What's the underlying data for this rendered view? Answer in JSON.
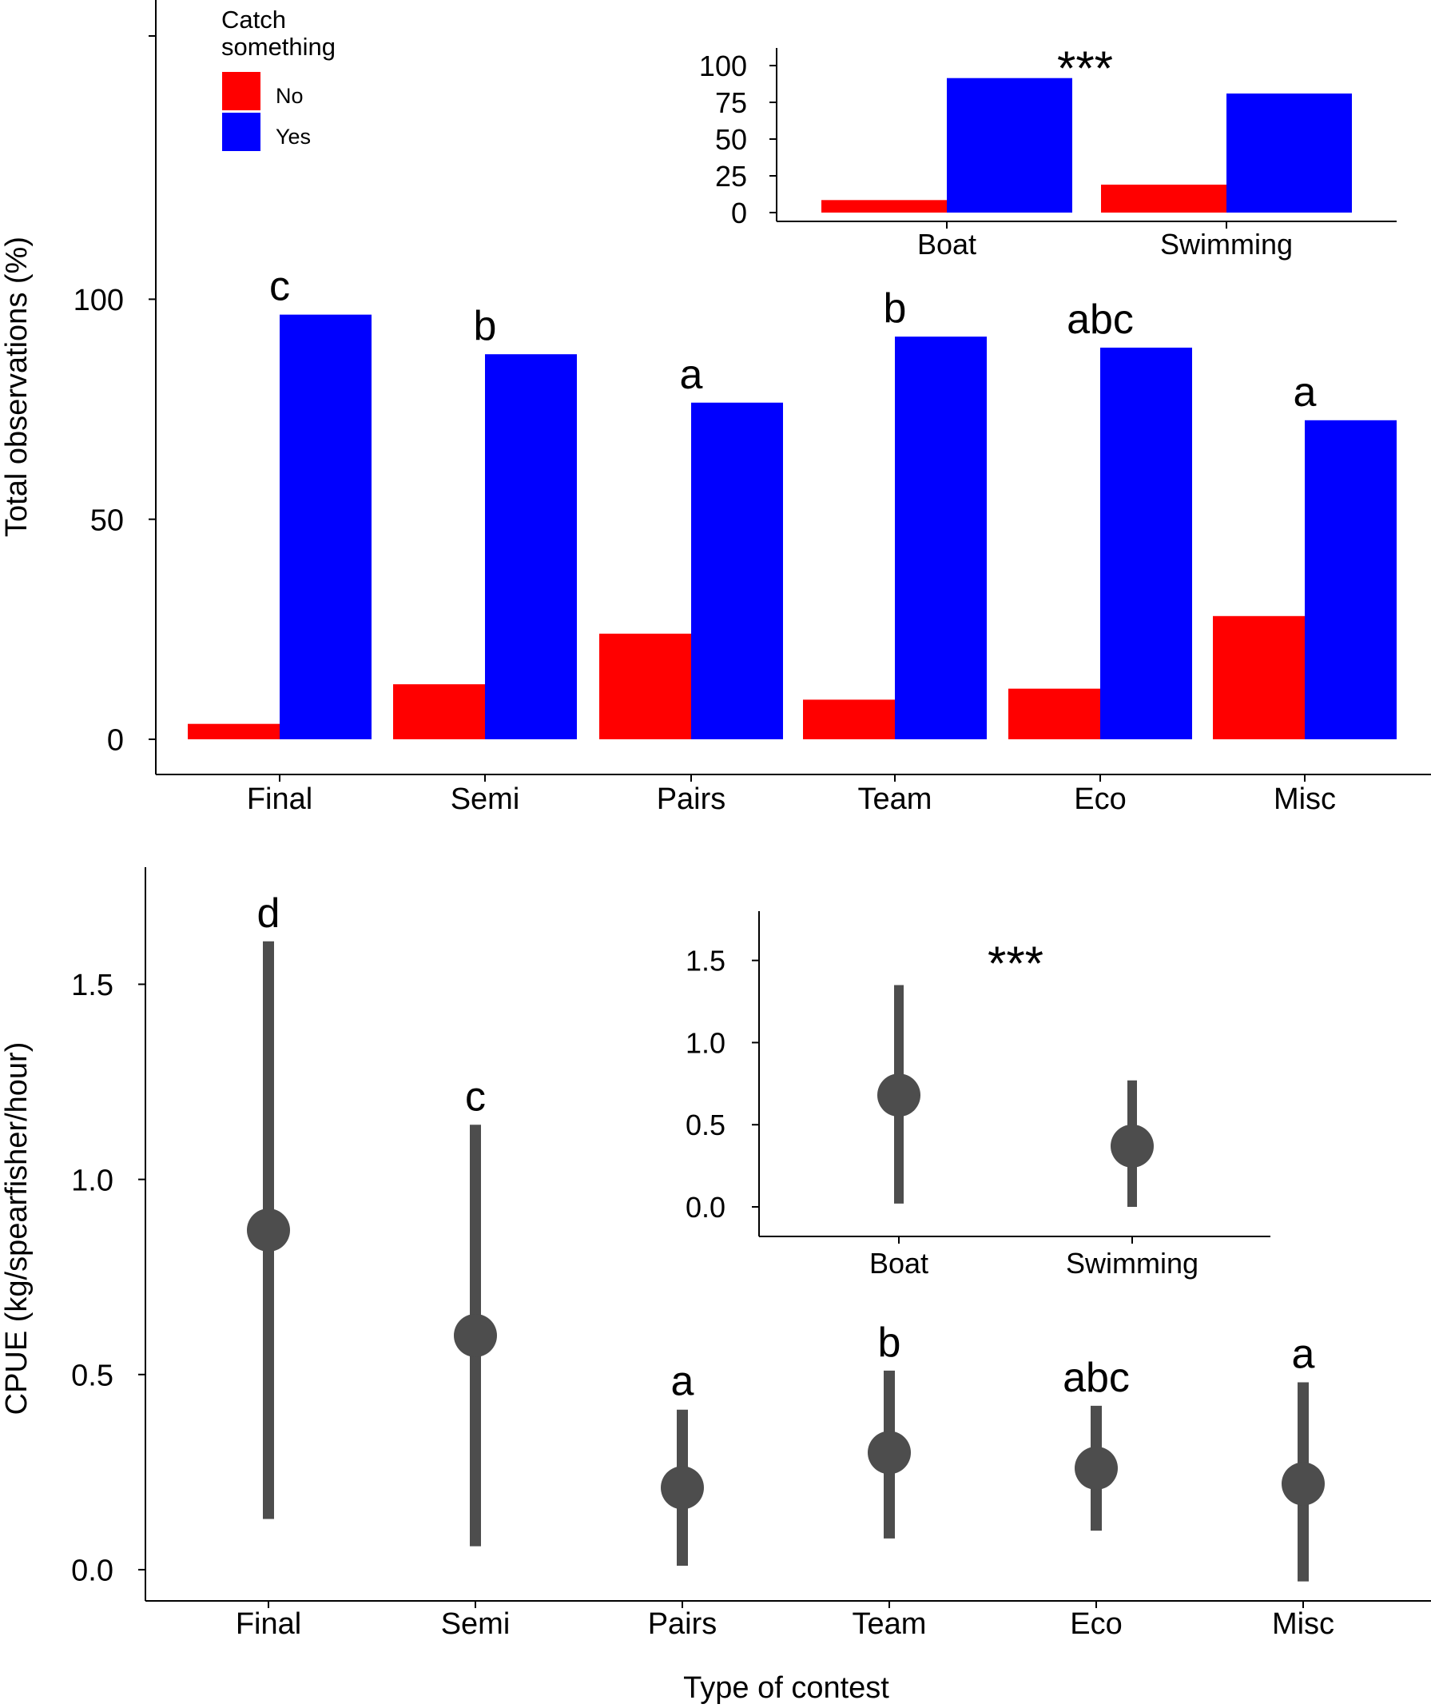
{
  "colors": {
    "no": "#ff0000",
    "yes": "#0000ff",
    "point": "#4d4d4d",
    "axis": "#000000"
  },
  "chart_data": [
    {
      "id": "top-main",
      "type": "bar",
      "categories": [
        "Final",
        "Semi",
        "Pairs",
        "Team",
        "Eco",
        "Misc"
      ],
      "series": [
        {
          "name": "No",
          "values": [
            3.5,
            12.5,
            24,
            9,
            11.5,
            28
          ]
        },
        {
          "name": "Yes",
          "values": [
            96.5,
            87.5,
            76.5,
            91.5,
            89,
            72.5
          ]
        }
      ],
      "significance_letters": [
        "c",
        "b",
        "a",
        "b",
        "abc",
        "a"
      ],
      "ylabel": "Total observations (%)",
      "yticks": [
        0,
        50,
        100
      ],
      "ylim": [
        -8,
        168
      ],
      "legend": {
        "title_line1": "Catch",
        "title_line2": "something",
        "position": "top-left"
      }
    },
    {
      "id": "top-inset",
      "type": "bar",
      "categories": [
        "Boat",
        "Swimming"
      ],
      "series": [
        {
          "name": "No",
          "values": [
            8.5,
            19
          ]
        },
        {
          "name": "Yes",
          "values": [
            91.5,
            81
          ]
        }
      ],
      "significance": "***",
      "yticks": [
        0,
        25,
        50,
        75,
        100
      ],
      "ylim": [
        -6,
        112
      ]
    },
    {
      "id": "bottom-main",
      "type": "scatter",
      "categories": [
        "Final",
        "Semi",
        "Pairs",
        "Team",
        "Eco",
        "Misc"
      ],
      "points": [
        0.87,
        0.6,
        0.21,
        0.3,
        0.26,
        0.22
      ],
      "lower": [
        0.13,
        0.06,
        0.01,
        0.08,
        0.1,
        -0.03
      ],
      "upper": [
        1.61,
        1.14,
        0.41,
        0.51,
        0.42,
        0.48
      ],
      "significance_letters": [
        "d",
        "c",
        "a",
        "b",
        "abc",
        "a"
      ],
      "ylabel": "CPUE (kg/spearfisher/hour)",
      "xlabel": "Type of contest",
      "yticks": [
        0.0,
        0.5,
        1.0,
        1.5
      ],
      "ytick_labels": [
        "0.0",
        "0.5",
        "1.0",
        "1.5"
      ],
      "ylim": [
        -0.08,
        1.8
      ]
    },
    {
      "id": "bottom-inset",
      "type": "scatter",
      "categories": [
        "Boat",
        "Swimming"
      ],
      "points": [
        0.68,
        0.37
      ],
      "lower": [
        0.02,
        0.0
      ],
      "upper": [
        1.35,
        0.77
      ],
      "significance": "***",
      "yticks": [
        0.0,
        0.5,
        1.0,
        1.5
      ],
      "ytick_labels": [
        "0.0",
        "0.5",
        "1.0",
        "1.5"
      ],
      "ylim": [
        -0.18,
        1.8
      ]
    }
  ]
}
